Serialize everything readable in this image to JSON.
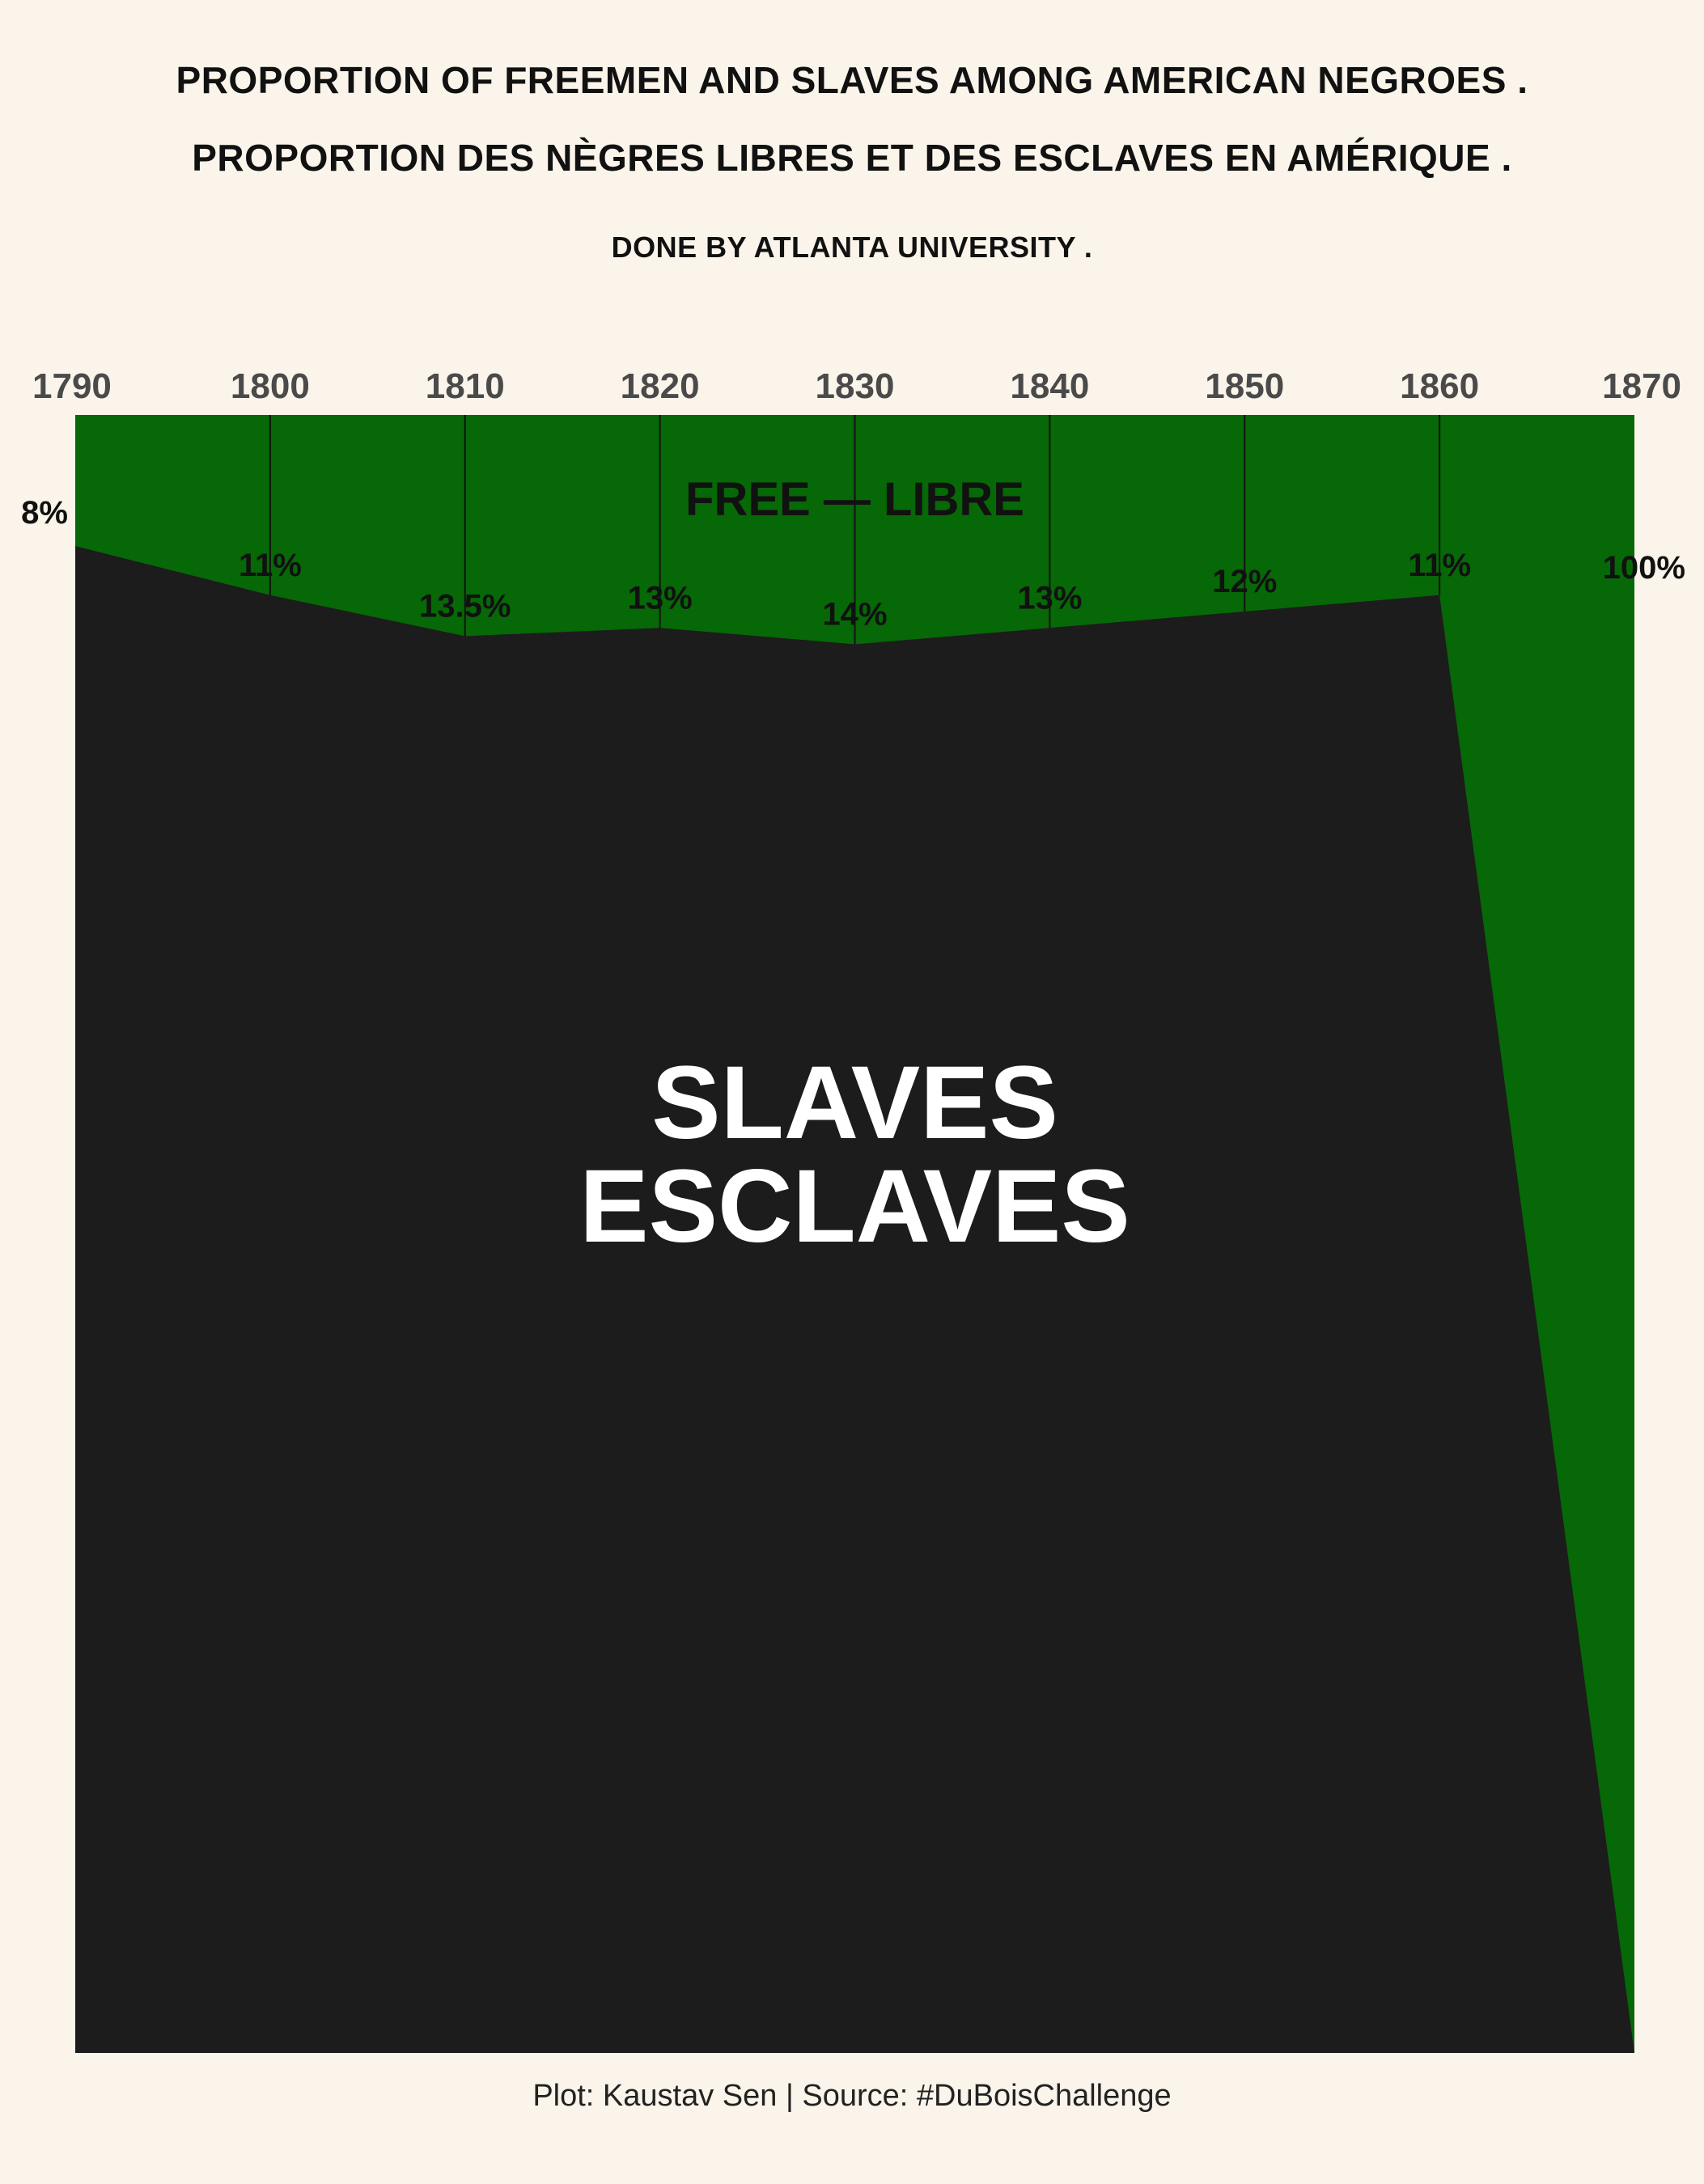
{
  "header": {
    "title_en": "PROPORTION OF FREEMEN AND SLAVES AMONG AMERICAN NEGROES .",
    "title_fr": "PROPORTION DES NÈGRES LIBRES ET DES ESCLAVES EN AMÉRIQUE .",
    "subtitle": "DONE BY ATLANTA UNIVERSITY ."
  },
  "caption": "Plot: Kaustav Sen | Source: #DuBoisChallenge",
  "colors": {
    "background": "#fbf4ea",
    "free": "#066806",
    "slaves": "#1c1c1c"
  },
  "chart_data": {
    "type": "area",
    "x": [
      1790,
      1800,
      1810,
      1820,
      1830,
      1840,
      1850,
      1860,
      1870
    ],
    "x_tick_labels": [
      "1790",
      "1800",
      "1810",
      "1820",
      "1830",
      "1840",
      "1850",
      "1860",
      "1870"
    ],
    "series": [
      {
        "name": "FREE — LIBRE",
        "values": [
          8,
          11,
          13.5,
          13,
          14,
          13,
          12,
          11,
          100
        ],
        "labels": [
          "8%",
          "11%",
          "13.5%",
          "13%",
          "14%",
          "13%",
          "12%",
          "11%",
          "100%"
        ],
        "color": "#066806"
      },
      {
        "name": "SLAVES\nESCLAVES",
        "values": [
          92,
          89,
          86.5,
          87,
          86,
          87,
          88,
          89,
          0
        ],
        "color": "#1c1c1c"
      }
    ],
    "area_labels": {
      "free": "FREE — LIBRE",
      "slaves_line1": "SLAVES",
      "slaves_line2": "ESCLAVES"
    },
    "xlim": [
      1790,
      1870
    ],
    "ylim": [
      0,
      100
    ],
    "y_direction": "percent free measured downward from the top",
    "x_axis_position": "top",
    "grid": false,
    "legend": "none"
  }
}
